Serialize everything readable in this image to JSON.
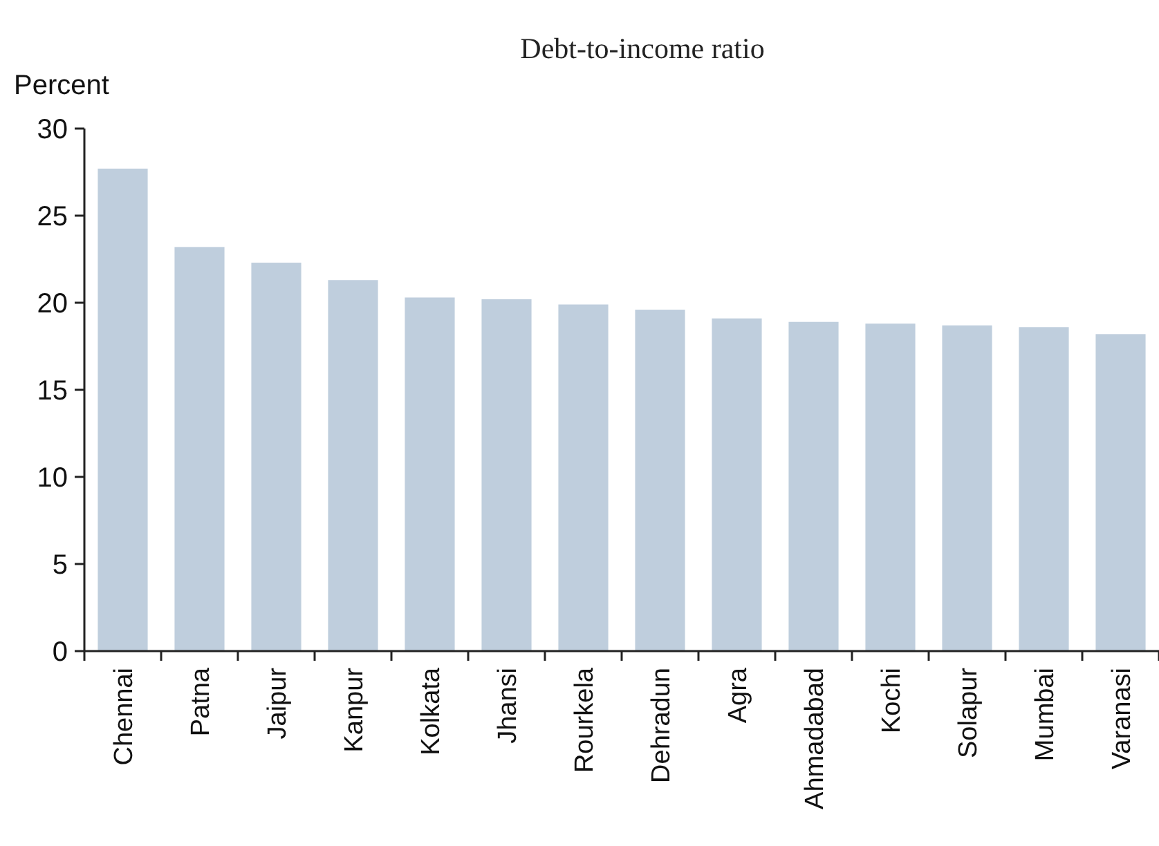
{
  "chart_data": {
    "type": "bar",
    "title": "Debt-to-income ratio",
    "ylabel": "Percent",
    "categories": [
      "Chennai",
      "Patna",
      "Jaipur",
      "Kanpur",
      "Kolkata",
      "Jhansi",
      "Rourkela",
      "Dehradun",
      "Agra",
      "Ahmadabad",
      "Kochi",
      "Solapur",
      "Mumbai",
      "Varanasi"
    ],
    "values": [
      27.7,
      23.2,
      22.3,
      21.3,
      20.3,
      20.2,
      19.9,
      19.6,
      19.1,
      18.9,
      18.8,
      18.7,
      18.6,
      18.2
    ],
    "color": "#bfcedd",
    "ylim": [
      0,
      30
    ],
    "yticks": [
      0,
      5,
      10,
      15,
      20,
      25,
      30
    ],
    "grid": false
  }
}
